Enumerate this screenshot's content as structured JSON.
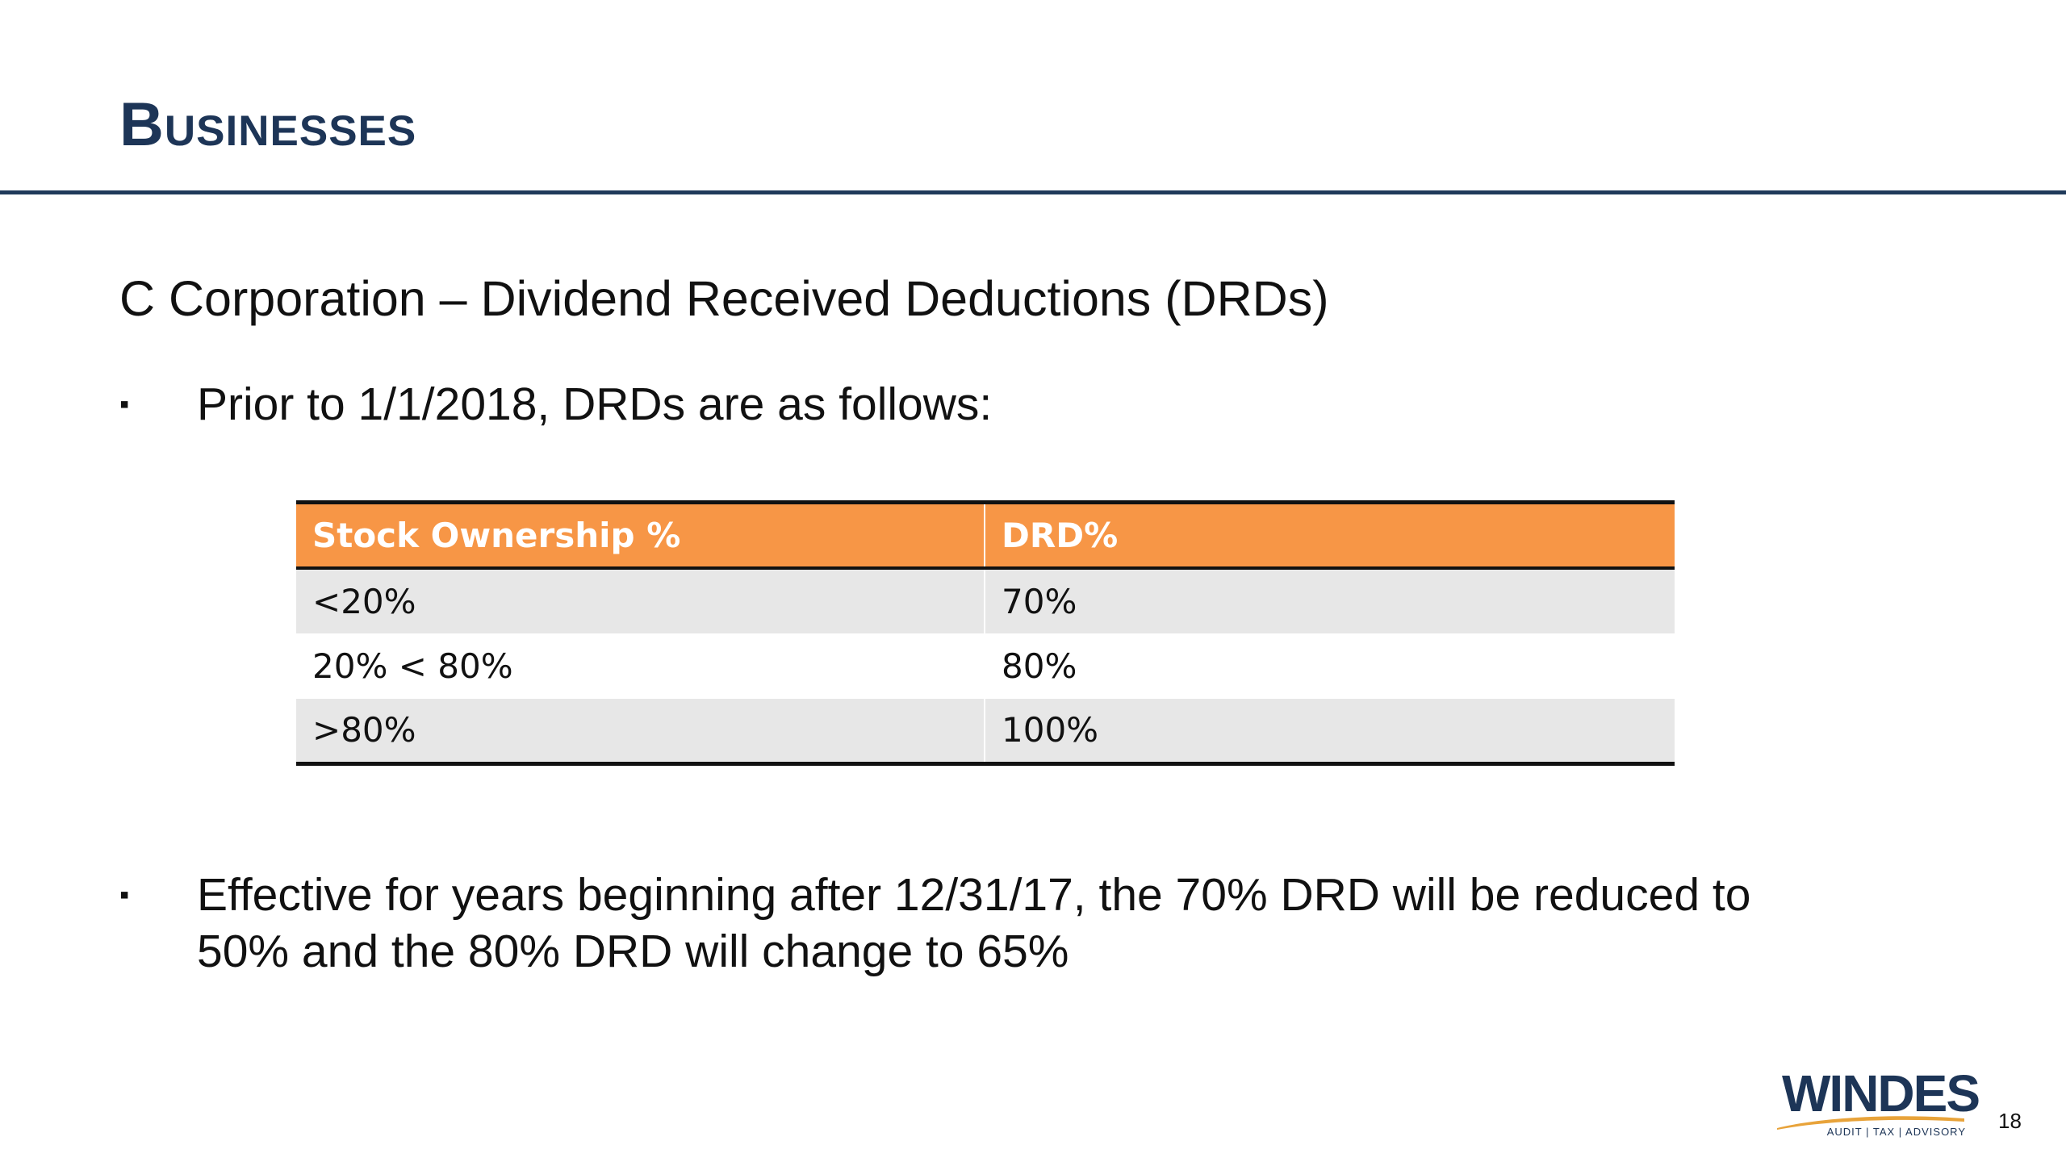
{
  "slide": {
    "title": "Businesses",
    "subtitle": "C Corporation – Dividend Received Deductions (DRDs)",
    "bullets": [
      "Prior to 1/1/2018, DRDs are as follows:",
      "Effective for years beginning after 12/31/17, the 70% DRD will be reduced to 50% and the 80% DRD will change to 65%"
    ],
    "bullet_marker": "▪",
    "page_number": "18"
  },
  "table": {
    "headers": [
      "Stock Ownership %",
      "DRD%"
    ],
    "rows": [
      [
        "<20%",
        "70%"
      ],
      [
        "20% < 80%",
        "80%"
      ],
      [
        ">80%",
        "100%"
      ]
    ]
  },
  "logo": {
    "name": "WINDES",
    "tagline": "AUDIT | TAX | ADVISORY"
  },
  "colors": {
    "title": "#1d3557",
    "rule": "#1f3a5a",
    "table_header": "#f79646",
    "table_shaded_row": "#e7e7e7",
    "logo_swoosh": "#e8a33a"
  }
}
